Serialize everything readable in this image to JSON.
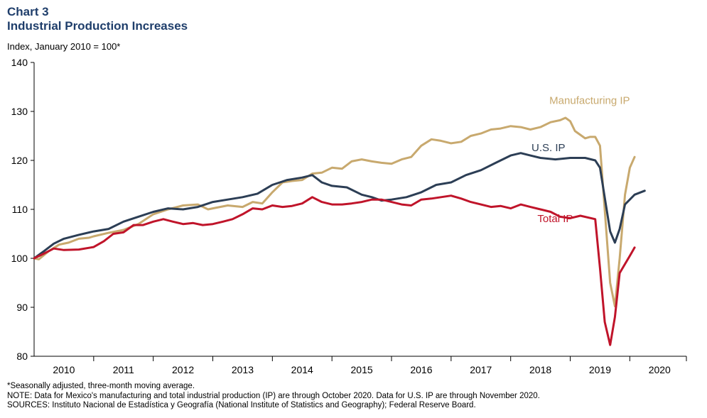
{
  "header": {
    "label": "Chart 3",
    "title": "Industrial Production Increases",
    "subtitle": "Index, January 2010 = 100*"
  },
  "notes": [
    "*Seasonally adjusted, three-month moving average.",
    "NOTE: Data for Mexico's manufacturing and total industrial production (IP) are through October 2020. Data for U.S. IP are through November 2020.",
    "SOURCES: Instituto Nacional de Estadística y Geografía (National Institute of Statistics and Geography); Federal Reserve Board."
  ],
  "chart_data": {
    "type": "line",
    "title": "Industrial Production Increases",
    "ylabel": "Index, January 2010 = 100*",
    "ylim": [
      80,
      140
    ],
    "yticks": [
      80,
      90,
      100,
      110,
      120,
      130,
      140
    ],
    "x_categories": [
      "2010",
      "2011",
      "2012",
      "2013",
      "2014",
      "2015",
      "2016",
      "2017",
      "2018",
      "2019",
      "2020"
    ],
    "xlim": [
      2010.0,
      2020.95
    ],
    "grid": false,
    "series": [
      {
        "name": "Manufacturing IP",
        "color": "#c8a96e",
        "points": [
          [
            2010.0,
            100.0
          ],
          [
            2010.08,
            99.8
          ],
          [
            2010.25,
            101.5
          ],
          [
            2010.42,
            102.8
          ],
          [
            2010.58,
            103.2
          ],
          [
            2010.75,
            104.0
          ],
          [
            2010.92,
            104.2
          ],
          [
            2011.0,
            104.5
          ],
          [
            2011.25,
            105.2
          ],
          [
            2011.5,
            105.8
          ],
          [
            2011.75,
            107.0
          ],
          [
            2012.0,
            109.0
          ],
          [
            2012.25,
            110.0
          ],
          [
            2012.5,
            110.8
          ],
          [
            2012.75,
            111.0
          ],
          [
            2012.92,
            110.0
          ],
          [
            2013.0,
            110.2
          ],
          [
            2013.25,
            110.8
          ],
          [
            2013.5,
            110.5
          ],
          [
            2013.67,
            111.5
          ],
          [
            2013.83,
            111.2
          ],
          [
            2014.0,
            113.5
          ],
          [
            2014.17,
            115.5
          ],
          [
            2014.33,
            115.8
          ],
          [
            2014.5,
            116.0
          ],
          [
            2014.67,
            117.3
          ],
          [
            2014.83,
            117.5
          ],
          [
            2015.0,
            118.5
          ],
          [
            2015.17,
            118.3
          ],
          [
            2015.33,
            119.8
          ],
          [
            2015.5,
            120.2
          ],
          [
            2015.67,
            119.8
          ],
          [
            2015.83,
            119.5
          ],
          [
            2016.0,
            119.3
          ],
          [
            2016.17,
            120.2
          ],
          [
            2016.33,
            120.7
          ],
          [
            2016.5,
            123.0
          ],
          [
            2016.67,
            124.3
          ],
          [
            2016.83,
            124.0
          ],
          [
            2017.0,
            123.5
          ],
          [
            2017.17,
            123.8
          ],
          [
            2017.33,
            125.0
          ],
          [
            2017.5,
            125.5
          ],
          [
            2017.67,
            126.3
          ],
          [
            2017.83,
            126.5
          ],
          [
            2018.0,
            127.0
          ],
          [
            2018.17,
            126.8
          ],
          [
            2018.33,
            126.3
          ],
          [
            2018.5,
            126.8
          ],
          [
            2018.67,
            127.8
          ],
          [
            2018.83,
            128.2
          ],
          [
            2018.92,
            128.7
          ],
          [
            2019.0,
            128.0
          ],
          [
            2019.08,
            126.0
          ],
          [
            2019.25,
            124.5
          ],
          [
            2019.33,
            124.8
          ],
          [
            2019.42,
            124.8
          ],
          [
            2019.5,
            123.0
          ],
          [
            2019.67,
            95.0
          ],
          [
            2019.75,
            90.2
          ],
          [
            2019.83,
            100.0
          ],
          [
            2019.92,
            113.0
          ],
          [
            2020.0,
            118.5
          ],
          [
            2020.08,
            120.7
          ]
        ]
      },
      {
        "name": "U.S. IP",
        "color": "#2c3e55",
        "points": [
          [
            2010.0,
            100.0
          ],
          [
            2010.17,
            101.5
          ],
          [
            2010.33,
            103.0
          ],
          [
            2010.5,
            104.0
          ],
          [
            2010.75,
            104.8
          ],
          [
            2011.0,
            105.5
          ],
          [
            2011.25,
            106.0
          ],
          [
            2011.5,
            107.5
          ],
          [
            2011.75,
            108.5
          ],
          [
            2012.0,
            109.5
          ],
          [
            2012.25,
            110.2
          ],
          [
            2012.5,
            110.0
          ],
          [
            2012.75,
            110.5
          ],
          [
            2013.0,
            111.5
          ],
          [
            2013.25,
            112.0
          ],
          [
            2013.5,
            112.5
          ],
          [
            2013.75,
            113.2
          ],
          [
            2014.0,
            115.0
          ],
          [
            2014.25,
            116.0
          ],
          [
            2014.5,
            116.5
          ],
          [
            2014.67,
            117.0
          ],
          [
            2014.83,
            115.5
          ],
          [
            2015.0,
            114.8
          ],
          [
            2015.25,
            114.5
          ],
          [
            2015.5,
            113.0
          ],
          [
            2015.67,
            112.5
          ],
          [
            2015.83,
            111.8
          ],
          [
            2016.0,
            112.0
          ],
          [
            2016.25,
            112.5
          ],
          [
            2016.5,
            113.5
          ],
          [
            2016.75,
            115.0
          ],
          [
            2017.0,
            115.5
          ],
          [
            2017.25,
            117.0
          ],
          [
            2017.5,
            118.0
          ],
          [
            2017.75,
            119.5
          ],
          [
            2018.0,
            121.0
          ],
          [
            2018.17,
            121.5
          ],
          [
            2018.33,
            121.0
          ],
          [
            2018.5,
            120.5
          ],
          [
            2018.75,
            120.2
          ],
          [
            2019.0,
            120.5
          ],
          [
            2019.25,
            120.5
          ],
          [
            2019.42,
            120.0
          ],
          [
            2019.5,
            118.5
          ],
          [
            2019.67,
            105.5
          ],
          [
            2019.75,
            103.2
          ],
          [
            2019.83,
            106.0
          ],
          [
            2019.92,
            111.0
          ],
          [
            2020.08,
            113.0
          ],
          [
            2020.25,
            113.8
          ]
        ]
      },
      {
        "name": "Total IP",
        "color": "#c0142a",
        "points": [
          [
            2010.0,
            100.0
          ],
          [
            2010.17,
            101.0
          ],
          [
            2010.33,
            102.0
          ],
          [
            2010.5,
            101.7
          ],
          [
            2010.75,
            101.8
          ],
          [
            2011.0,
            102.3
          ],
          [
            2011.17,
            103.5
          ],
          [
            2011.33,
            105.0
          ],
          [
            2011.5,
            105.3
          ],
          [
            2011.67,
            106.8
          ],
          [
            2011.83,
            106.8
          ],
          [
            2012.0,
            107.5
          ],
          [
            2012.17,
            108.0
          ],
          [
            2012.33,
            107.5
          ],
          [
            2012.5,
            107.0
          ],
          [
            2012.67,
            107.2
          ],
          [
            2012.83,
            106.8
          ],
          [
            2013.0,
            107.0
          ],
          [
            2013.17,
            107.5
          ],
          [
            2013.33,
            108.0
          ],
          [
            2013.5,
            109.0
          ],
          [
            2013.67,
            110.2
          ],
          [
            2013.83,
            110.0
          ],
          [
            2014.0,
            110.8
          ],
          [
            2014.17,
            110.5
          ],
          [
            2014.33,
            110.7
          ],
          [
            2014.5,
            111.2
          ],
          [
            2014.67,
            112.5
          ],
          [
            2014.83,
            111.5
          ],
          [
            2015.0,
            111.0
          ],
          [
            2015.17,
            111.0
          ],
          [
            2015.33,
            111.2
          ],
          [
            2015.5,
            111.5
          ],
          [
            2015.67,
            112.0
          ],
          [
            2015.83,
            112.0
          ],
          [
            2016.0,
            111.5
          ],
          [
            2016.17,
            111.0
          ],
          [
            2016.33,
            110.8
          ],
          [
            2016.5,
            112.0
          ],
          [
            2016.67,
            112.2
          ],
          [
            2016.83,
            112.5
          ],
          [
            2017.0,
            112.8
          ],
          [
            2017.17,
            112.2
          ],
          [
            2017.33,
            111.5
          ],
          [
            2017.5,
            111.0
          ],
          [
            2017.67,
            110.5
          ],
          [
            2017.83,
            110.7
          ],
          [
            2018.0,
            110.2
          ],
          [
            2018.17,
            111.0
          ],
          [
            2018.33,
            110.5
          ],
          [
            2018.5,
            110.0
          ],
          [
            2018.67,
            109.5
          ],
          [
            2018.83,
            108.5
          ],
          [
            2019.0,
            108.2
          ],
          [
            2019.17,
            108.7
          ],
          [
            2019.42,
            108.0
          ],
          [
            2019.5,
            98.0
          ],
          [
            2019.58,
            87.0
          ],
          [
            2019.67,
            82.3
          ],
          [
            2019.75,
            88.0
          ],
          [
            2019.83,
            97.0
          ],
          [
            2020.0,
            100.5
          ],
          [
            2020.08,
            102.2
          ]
        ]
      }
    ]
  }
}
